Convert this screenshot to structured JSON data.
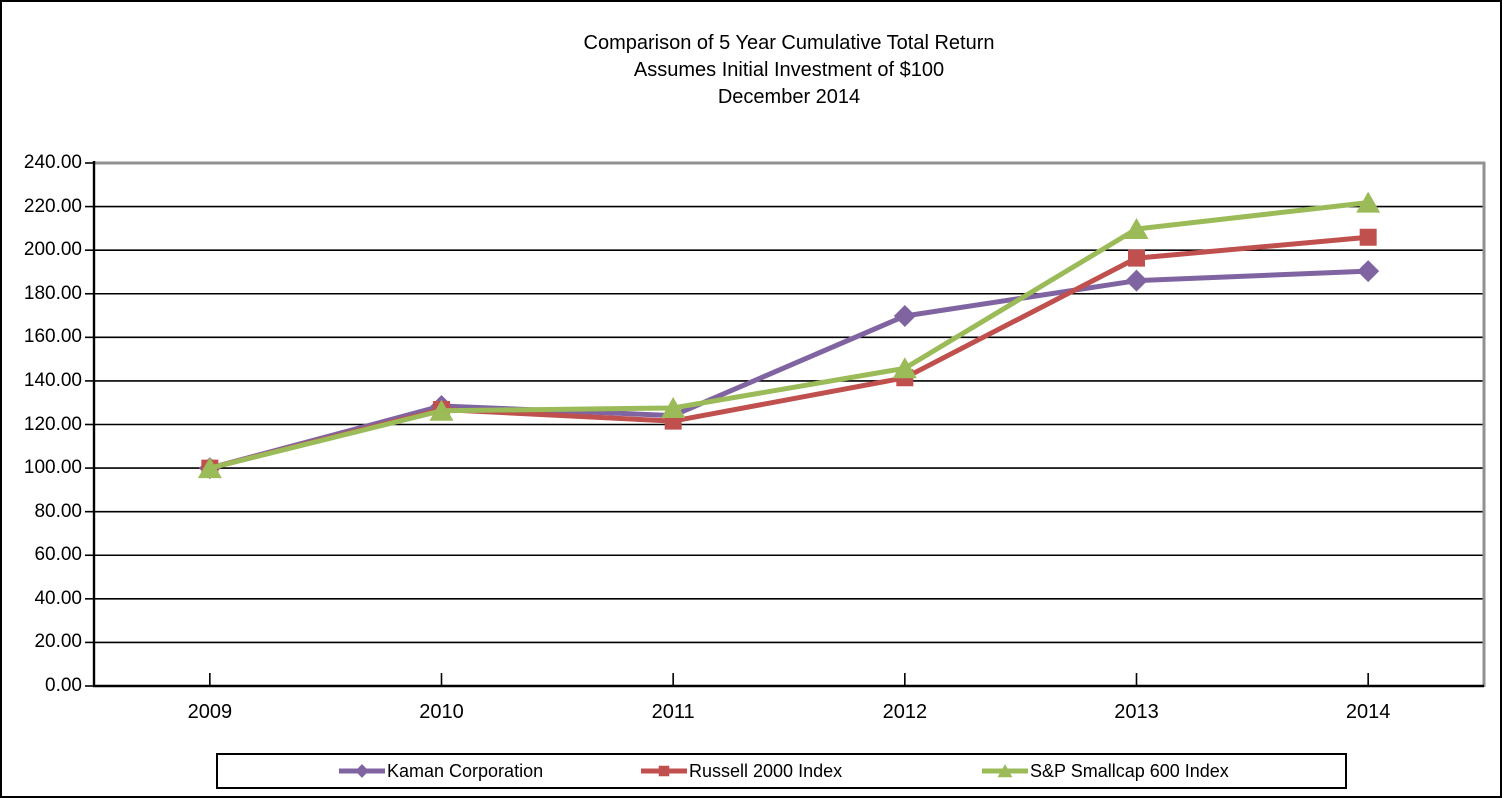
{
  "chart_data": {
    "type": "line",
    "title": "Comparison of 5 Year Cumulative Total Return",
    "subtitle": "Assumes Initial Investment of $100",
    "date_line": "December 2014",
    "categories": [
      "2009",
      "2010",
      "2011",
      "2012",
      "2013",
      "2014"
    ],
    "series": [
      {
        "name": "Kaman Corporation",
        "color": "#8064A2",
        "marker": "diamond",
        "values": [
          100.0,
          128.5,
          124.1,
          169.8,
          186.0,
          190.4
        ]
      },
      {
        "name": "Russell 2000 Index",
        "color": "#C0504D",
        "marker": "square",
        "values": [
          100.0,
          126.86,
          121.56,
          141.43,
          196.34,
          205.95
        ]
      },
      {
        "name": "S&P Smallcap 600 Index",
        "color": "#9BBB59",
        "marker": "triangle",
        "values": [
          100.0,
          126.31,
          127.59,
          145.8,
          209.73,
          221.81
        ]
      }
    ],
    "y_axis": {
      "min": 0,
      "max": 240,
      "step": 20,
      "decimals": 2
    },
    "grid": true,
    "legend_position": "bottom",
    "colors": {
      "gridline": "#000000",
      "axis": "#000000",
      "plot_border_gray": "#919191",
      "text": "#000000",
      "background": "#FFFFFF"
    }
  }
}
